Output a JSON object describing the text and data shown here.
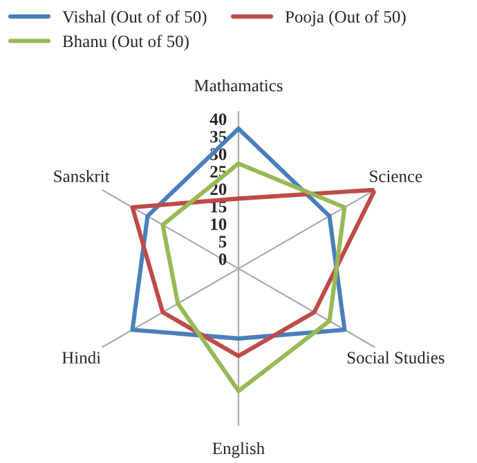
{
  "chart_data": {
    "type": "radar",
    "categories": [
      "Mathamatics",
      "Science",
      "Social Studies",
      "English",
      "Hindi",
      "Sanskrit"
    ],
    "series": [
      {
        "name": "Vishal (Out of of 50)",
        "color": "#4a7ebb",
        "values": [
          40,
          30,
          35,
          20,
          35,
          30
        ]
      },
      {
        "name": "Pooja (Out of 50)",
        "color": "#be4b48",
        "values": [
          20,
          45,
          25,
          25,
          25,
          35
        ]
      },
      {
        "name": "Bhanu (Out of 50)",
        "color": "#98b954",
        "values": [
          30,
          35,
          30,
          35,
          20,
          25
        ]
      }
    ],
    "ylim": [
      0,
      45
    ],
    "yticks": [
      0,
      5,
      10,
      15,
      20,
      25,
      30,
      35,
      40
    ],
    "grid": "x",
    "legend": "top",
    "marker": "none"
  }
}
